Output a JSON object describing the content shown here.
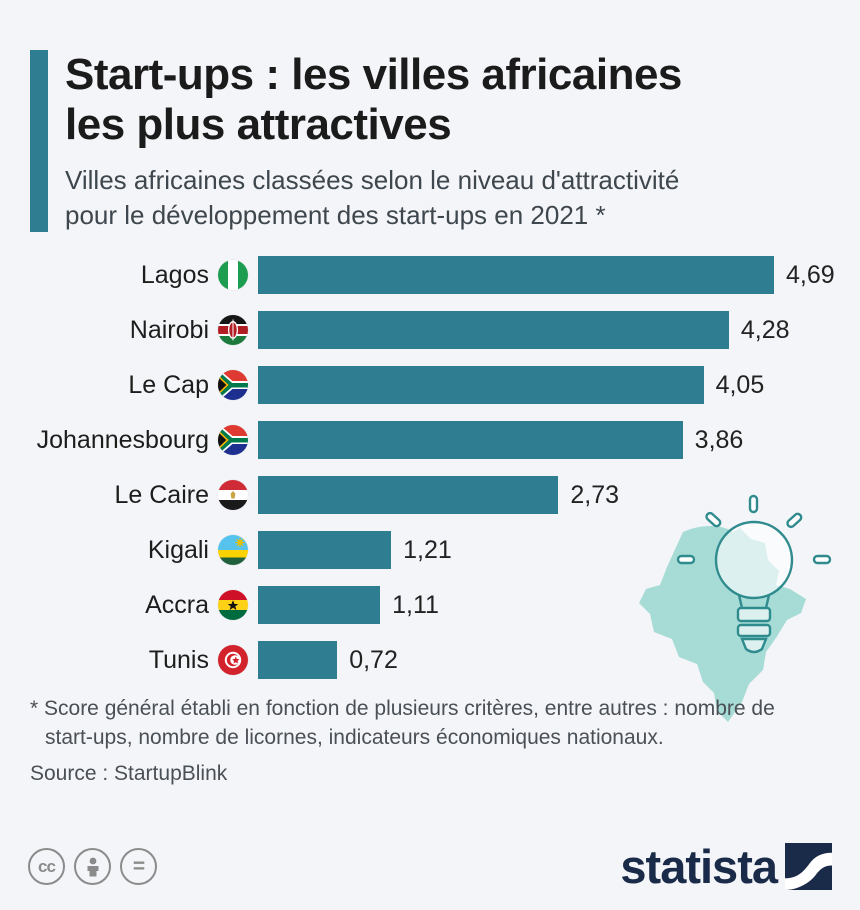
{
  "header": {
    "title_line1": "Start-ups : les villes africaines",
    "title_line2": "les plus attractives",
    "subtitle_line1": "Villes africaines classées selon le niveau d'attractivité",
    "subtitle_line2": "pour le développement des start-ups en 2021 *"
  },
  "chart_data": {
    "type": "bar",
    "orientation": "horizontal",
    "title": "Start-ups : les villes africaines les plus attractives",
    "subtitle": "Villes africaines classées selon le niveau d'attractivité pour le développement des start-ups en 2021",
    "categories": [
      "Lagos",
      "Nairobi",
      "Le Cap",
      "Johannesbourg",
      "Le Caire",
      "Kigali",
      "Accra",
      "Tunis"
    ],
    "values": [
      4.69,
      4.28,
      4.05,
      3.86,
      2.73,
      1.21,
      1.11,
      0.72
    ],
    "value_labels": [
      "4,69",
      "4,28",
      "4,05",
      "3,86",
      "2,73",
      "1,21",
      "1,11",
      "0,72"
    ],
    "flags": [
      "nigeria",
      "kenya",
      "south-africa",
      "south-africa",
      "egypt",
      "rwanda",
      "ghana",
      "tunisia"
    ],
    "xlim": [
      0,
      4.69
    ],
    "grid": false,
    "legend": "none",
    "unit": "score"
  },
  "footnote": {
    "line1": "* Score général établi en fonction de plusieurs critères, entre autres : nombre de",
    "line2": "start-ups, nombre de licornes, indicateurs économiques nationaux."
  },
  "source": "Source : StartupBlink",
  "footer": {
    "license_icons": [
      "cc-icon",
      "attribution-person-icon",
      "equals-icon"
    ],
    "cc_label": "cc",
    "equals_label": "=",
    "brand": "statista"
  },
  "decoration": {
    "icons": [
      "africa-map-icon",
      "lightbulb-icon"
    ]
  },
  "colors": {
    "bar": "#2e7d90",
    "accent_bar": "#2e7d90",
    "background": "#f3f5f8",
    "africa_map": "#a7dcd6",
    "lightbulb_stroke": "#2f8b8e",
    "brand_navy": "#1a2b49",
    "title_text": "#1b1b1b",
    "subtitle_text": "#3f474e"
  }
}
